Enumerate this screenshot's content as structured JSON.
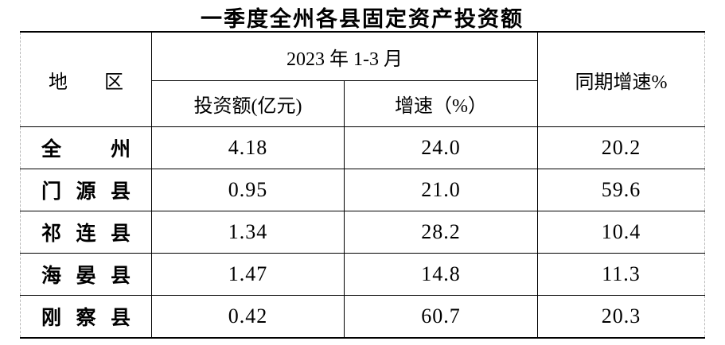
{
  "title": "一季度全州各县固定资产投资额",
  "table": {
    "header": {
      "region": "地区",
      "period_group": "2023 年 1-3 月",
      "investment": "投资额(亿元)",
      "growth": "增速（%）",
      "same_period_growth": "同期增速%"
    },
    "rows": [
      {
        "region": "全州",
        "investment": "4.18",
        "growth": "24.0",
        "same_period_growth": "20.2"
      },
      {
        "region": "门源县",
        "investment": "0.95",
        "growth": "21.0",
        "same_period_growth": "59.6"
      },
      {
        "region": "祁连县",
        "investment": "1.34",
        "growth": "28.2",
        "same_period_growth": "10.4"
      },
      {
        "region": "海晏县",
        "investment": "1.47",
        "growth": "14.8",
        "same_period_growth": "11.3"
      },
      {
        "region": "刚察县",
        "investment": "0.42",
        "growth": "60.7",
        "same_period_growth": "20.3"
      }
    ]
  },
  "chart_data": {
    "type": "table",
    "title": "一季度全州各县固定资产投资额",
    "columns": [
      "地区",
      "2023年1-3月 投资额(亿元)",
      "2023年1-3月 增速（%）",
      "同期增速%"
    ],
    "rows": [
      [
        "全州",
        4.18,
        24.0,
        20.2
      ],
      [
        "门源县",
        0.95,
        21.0,
        59.6
      ],
      [
        "祁连县",
        1.34,
        28.2,
        10.4
      ],
      [
        "海晏县",
        1.47,
        14.8,
        11.3
      ],
      [
        "刚察县",
        0.42,
        60.7,
        20.3
      ]
    ]
  },
  "colors": {
    "text": "#000000",
    "rule": "#000000",
    "edge_dashed": "#b9b9b9",
    "background": "#ffffff"
  }
}
